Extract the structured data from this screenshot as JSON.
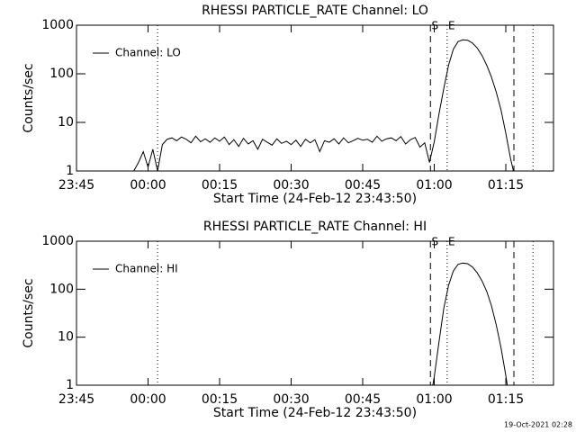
{
  "chart_data": [
    {
      "type": "line",
      "title": "RHESSI PARTICLE_RATE Channel: LO",
      "xlabel": "Start Time (24-Feb-12 23:43:50)",
      "ylabel": "Counts/sec",
      "log_y": true,
      "legend": "top-left",
      "xlim": [
        0,
        100
      ],
      "xticks": [
        {
          "value": 0,
          "label": "23:45"
        },
        {
          "value": 15,
          "label": "00:00"
        },
        {
          "value": 30,
          "label": "00:15"
        },
        {
          "value": 45,
          "label": "00:30"
        },
        {
          "value": 60,
          "label": "00:45"
        },
        {
          "value": 75,
          "label": "01:00"
        },
        {
          "value": 90,
          "label": "01:15"
        }
      ],
      "ylim": [
        1,
        1000
      ],
      "yticks": [
        1,
        10,
        100,
        1000
      ],
      "vlines": [
        {
          "x": 17,
          "style": "dotted"
        },
        {
          "x": 74.2,
          "style": "dashed",
          "label": "S"
        },
        {
          "x": 77.7,
          "style": "dotted",
          "label": "E"
        },
        {
          "x": 91.7,
          "style": "dashed"
        },
        {
          "x": 95.7,
          "style": "dotted"
        }
      ],
      "series": [
        {
          "name": "Channel: LO",
          "color": "#000000",
          "x": [
            12,
            13,
            14,
            15,
            16,
            17,
            18,
            19,
            20,
            21,
            22,
            23,
            24,
            25,
            26,
            27,
            28,
            29,
            30,
            31,
            32,
            33,
            34,
            35,
            36,
            37,
            38,
            39,
            40,
            41,
            42,
            43,
            44,
            45,
            46,
            47,
            48,
            49,
            50,
            51,
            52,
            53,
            54,
            55,
            56,
            57,
            58,
            59,
            60,
            61,
            62,
            63,
            64,
            65,
            66,
            67,
            68,
            69,
            70,
            71,
            72,
            73,
            74,
            75,
            76,
            77,
            78,
            79,
            80,
            81,
            82,
            83,
            84,
            85,
            86,
            87,
            88,
            89,
            90,
            91,
            91.6
          ],
          "values": [
            1,
            1.5,
            2.5,
            1.2,
            2.8,
            1,
            3.5,
            4.5,
            4.8,
            4.2,
            5,
            4.5,
            3.8,
            5.2,
            4,
            4.6,
            3.9,
            4.8,
            4.1,
            5,
            3.5,
            4.4,
            3.2,
            4.7,
            3.6,
            4.2,
            2.8,
            4.5,
            3.9,
            3.4,
            4.6,
            3.7,
            4.1,
            3.5,
            4.3,
            3.2,
            4.5,
            3.8,
            4.4,
            2.5,
            4.2,
            3.9,
            4.6,
            3.6,
            4.8,
            3.8,
            4.2,
            4.7,
            4.3,
            4.5,
            3.9,
            5.2,
            4.1,
            4.6,
            4.8,
            4.2,
            5.1,
            3.6,
            4.4,
            4.9,
            3.1,
            3.8,
            1.5,
            4,
            15,
            50,
            150,
            320,
            460,
            500,
            490,
            430,
            340,
            240,
            150,
            85,
            42,
            18,
            6,
            1.8,
            1
          ]
        }
      ]
    },
    {
      "type": "line",
      "title": "RHESSI PARTICLE_RATE Channel: HI",
      "xlabel": "Start Time (24-Feb-12 23:43:50)",
      "ylabel": "Counts/sec",
      "log_y": true,
      "legend": "top-left",
      "xlim": [
        0,
        100
      ],
      "xticks": [
        {
          "value": 0,
          "label": "23:45"
        },
        {
          "value": 15,
          "label": "00:00"
        },
        {
          "value": 30,
          "label": "00:15"
        },
        {
          "value": 45,
          "label": "00:30"
        },
        {
          "value": 60,
          "label": "00:45"
        },
        {
          "value": 75,
          "label": "01:00"
        },
        {
          "value": 90,
          "label": "01:15"
        }
      ],
      "ylim": [
        1,
        1000
      ],
      "yticks": [
        1,
        10,
        100,
        1000
      ],
      "vlines": [
        {
          "x": 17,
          "style": "dotted"
        },
        {
          "x": 74.2,
          "style": "dashed",
          "label": "S"
        },
        {
          "x": 77.7,
          "style": "dotted",
          "label": "E"
        },
        {
          "x": 91.7,
          "style": "dashed"
        },
        {
          "x": 95.7,
          "style": "dotted"
        }
      ],
      "series": [
        {
          "name": "Channel: HI",
          "color": "#000000",
          "x": [
            74.7,
            75,
            76,
            77,
            78,
            79,
            80,
            81,
            82,
            83,
            84,
            85,
            86,
            87,
            88,
            89,
            90,
            90.3
          ],
          "values": [
            1,
            1.5,
            8,
            40,
            120,
            240,
            330,
            350,
            340,
            290,
            220,
            150,
            90,
            45,
            18,
            6,
            1.6,
            1
          ]
        }
      ]
    }
  ],
  "footer": "19-Oct-2021 02:28"
}
